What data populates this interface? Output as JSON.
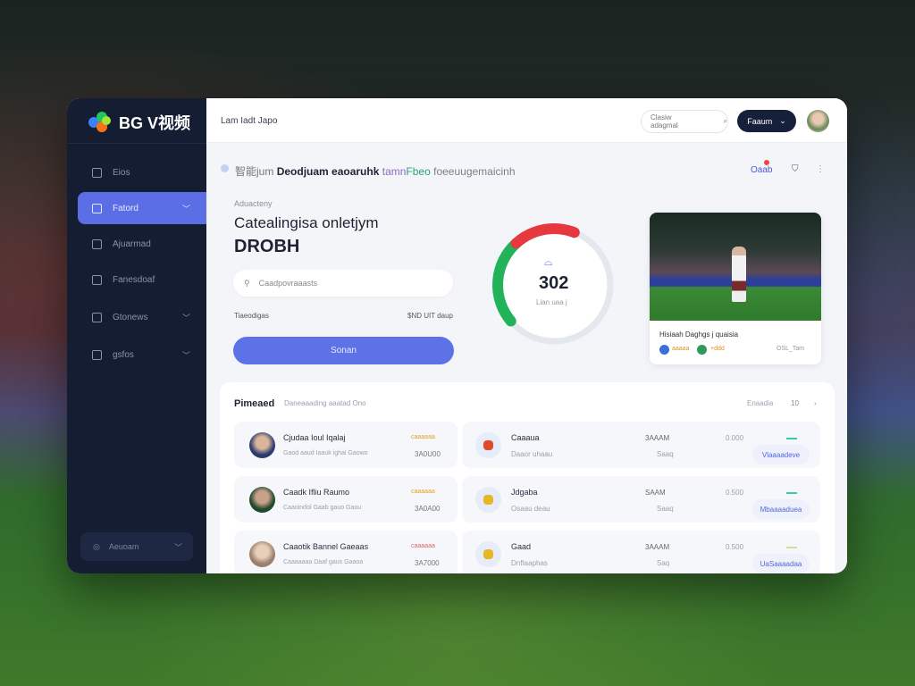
{
  "brand": {
    "name": "BG V视频"
  },
  "sidebar": {
    "items": [
      {
        "label": "Eios",
        "icon": "home-icon"
      },
      {
        "label": "Fatord",
        "icon": "list-icon",
        "active": true
      },
      {
        "label": "Ajuarmad",
        "icon": "document-icon"
      },
      {
        "label": "Fanesdoaf",
        "icon": "card-icon"
      },
      {
        "label": "Gtonews",
        "icon": "box-icon",
        "chevron": true
      },
      {
        "label": "gsfos",
        "icon": "image-icon",
        "chevron": true
      }
    ],
    "footer": "Aeuoam"
  },
  "header": {
    "breadcrumb": "Lam Iadt Japo",
    "search_placeholder": "Clasiw adagmal",
    "button": "Faaum",
    "avatar": "user-avatar"
  },
  "banner": {
    "text_1": "智能jum",
    "text_2": "Deodjuam eaoaruhk",
    "text_3": "tamn",
    "text_4": "Fbeo",
    "text_5": "foeeuugemaicinh",
    "right_link": "Oaab"
  },
  "hero": {
    "eyebrow": "Aduacteny",
    "title": "Catealingisa onletjym",
    "value": "DROBH",
    "input_placeholder": "Caadpovraaasts",
    "meta_left": "Tiaeodigas",
    "meta_right": "$ND UIT daup",
    "cta": "Sonan"
  },
  "gauge": {
    "value": "302",
    "label": "Lian uaa j",
    "fraction": 0.42,
    "colors": {
      "red": "#e5393f",
      "green": "#22b35a",
      "track": "#e4e7ee"
    }
  },
  "video": {
    "title": "Hisiaah Daghgs j quaisia",
    "tag1": "aaaaa",
    "tag2": "+ddd",
    "time": "OSL_Tam"
  },
  "list": {
    "title": "Pimeaed",
    "subtitle": "Daneaaading aaatad Ono",
    "more": "Enaadia",
    "count": "10",
    "rows": [
      {
        "name": "Cjudaa Ioul Iqalaj",
        "meta": "Gaod aaud  Iaauk  ighal  Gaowo",
        "tag": "caaaaaa",
        "amount": "3A0U00",
        "item": "Caaaua",
        "item_meta": "Daaor uhaau",
        "v1": "3AAAM",
        "v1b": "Saaq",
        "v2": "0.000",
        "action": "Vlaaaadeve"
      },
      {
        "name": "Caadk Ifliu Raumo",
        "meta": "Caaoindol  Gaab  gauo  Gaou",
        "tag": "caaaaaa",
        "amount": "3A0A00",
        "item": "Jdgaba",
        "item_meta": "Osaau deau",
        "v1": "SAAM",
        "v1b": "Saaq",
        "v2": "0.500",
        "action": "Mbaaaaduea"
      },
      {
        "name": "Caaotik Bannel Gaeaas",
        "meta": "Caaaaaaa  Daaf  gaus  Gaaoa",
        "tag": "caaaaaa",
        "amount": "3A7000",
        "item": "Gaad",
        "item_meta": "Dnftaaphas",
        "v1": "3AAAM",
        "v1b": "Saq",
        "v2": "0.500",
        "action": "UaSaaaadaa"
      }
    ]
  }
}
